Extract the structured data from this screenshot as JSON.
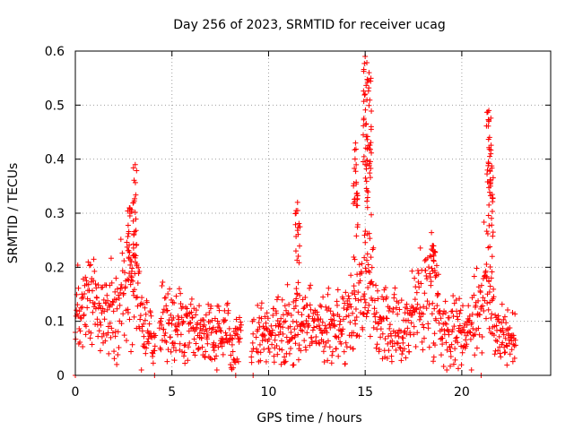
{
  "chart_data": {
    "type": "scatter",
    "title": "Day 256 of 2023, SRMTID for receiver ucag",
    "xlabel": "GPS time / hours",
    "ylabel": "SRMTID / TECUs",
    "xlim": [
      0,
      24.6
    ],
    "ylim": [
      0,
      0.6
    ],
    "xticks": [
      0,
      5,
      10,
      15,
      20
    ],
    "xtick_labels": [
      "0",
      "5",
      "10",
      "15",
      "20"
    ],
    "yticks": [
      0,
      0.1,
      0.2,
      0.3,
      0.4,
      0.5,
      0.6
    ],
    "ytick_labels": [
      "0",
      "0.1",
      "0.2",
      "0.3",
      "0.4",
      "0.5",
      "0.6"
    ],
    "grid": true,
    "marker": "+",
    "color": "#ff0000",
    "series": [
      {
        "name": "SRMTID",
        "envelope_note": "hourly approximate baseline level of the dense point cloud",
        "baseline": [
          {
            "x": 0.0,
            "y": 0.11
          },
          {
            "x": 1.0,
            "y": 0.12
          },
          {
            "x": 2.0,
            "y": 0.11
          },
          {
            "x": 2.5,
            "y": 0.16
          },
          {
            "x": 3.0,
            "y": 0.16
          },
          {
            "x": 3.5,
            "y": 0.09
          },
          {
            "x": 4.0,
            "y": 0.06
          },
          {
            "x": 4.5,
            "y": 0.1
          },
          {
            "x": 5.0,
            "y": 0.09
          },
          {
            "x": 6.0,
            "y": 0.08
          },
          {
            "x": 7.0,
            "y": 0.08
          },
          {
            "x": 8.0,
            "y": 0.07
          },
          {
            "x": 9.0,
            "y": 0.08
          },
          {
            "x": 10.0,
            "y": 0.08
          },
          {
            "x": 11.0,
            "y": 0.09
          },
          {
            "x": 12.0,
            "y": 0.1
          },
          {
            "x": 13.0,
            "y": 0.09
          },
          {
            "x": 14.0,
            "y": 0.1
          },
          {
            "x": 14.8,
            "y": 0.16
          },
          {
            "x": 15.5,
            "y": 0.13
          },
          {
            "x": 16.0,
            "y": 0.09
          },
          {
            "x": 17.0,
            "y": 0.08
          },
          {
            "x": 17.5,
            "y": 0.12
          },
          {
            "x": 18.5,
            "y": 0.17
          },
          {
            "x": 19.0,
            "y": 0.09
          },
          {
            "x": 20.0,
            "y": 0.08
          },
          {
            "x": 20.5,
            "y": 0.1
          },
          {
            "x": 21.3,
            "y": 0.16
          },
          {
            "x": 21.8,
            "y": 0.09
          },
          {
            "x": 22.8,
            "y": 0.06
          }
        ],
        "peaks": [
          {
            "x": 2.8,
            "y": 0.31
          },
          {
            "x": 3.1,
            "y": 0.39
          },
          {
            "x": 11.5,
            "y": 0.32
          },
          {
            "x": 14.5,
            "y": 0.43
          },
          {
            "x": 15.0,
            "y": 0.59
          },
          {
            "x": 15.2,
            "y": 0.56
          },
          {
            "x": 18.5,
            "y": 0.24
          },
          {
            "x": 21.4,
            "y": 0.49
          },
          {
            "x": 21.5,
            "y": 0.41
          }
        ],
        "zero_points": [
          0.0,
          4.1,
          8.3,
          9.2,
          21.0
        ]
      }
    ]
  }
}
